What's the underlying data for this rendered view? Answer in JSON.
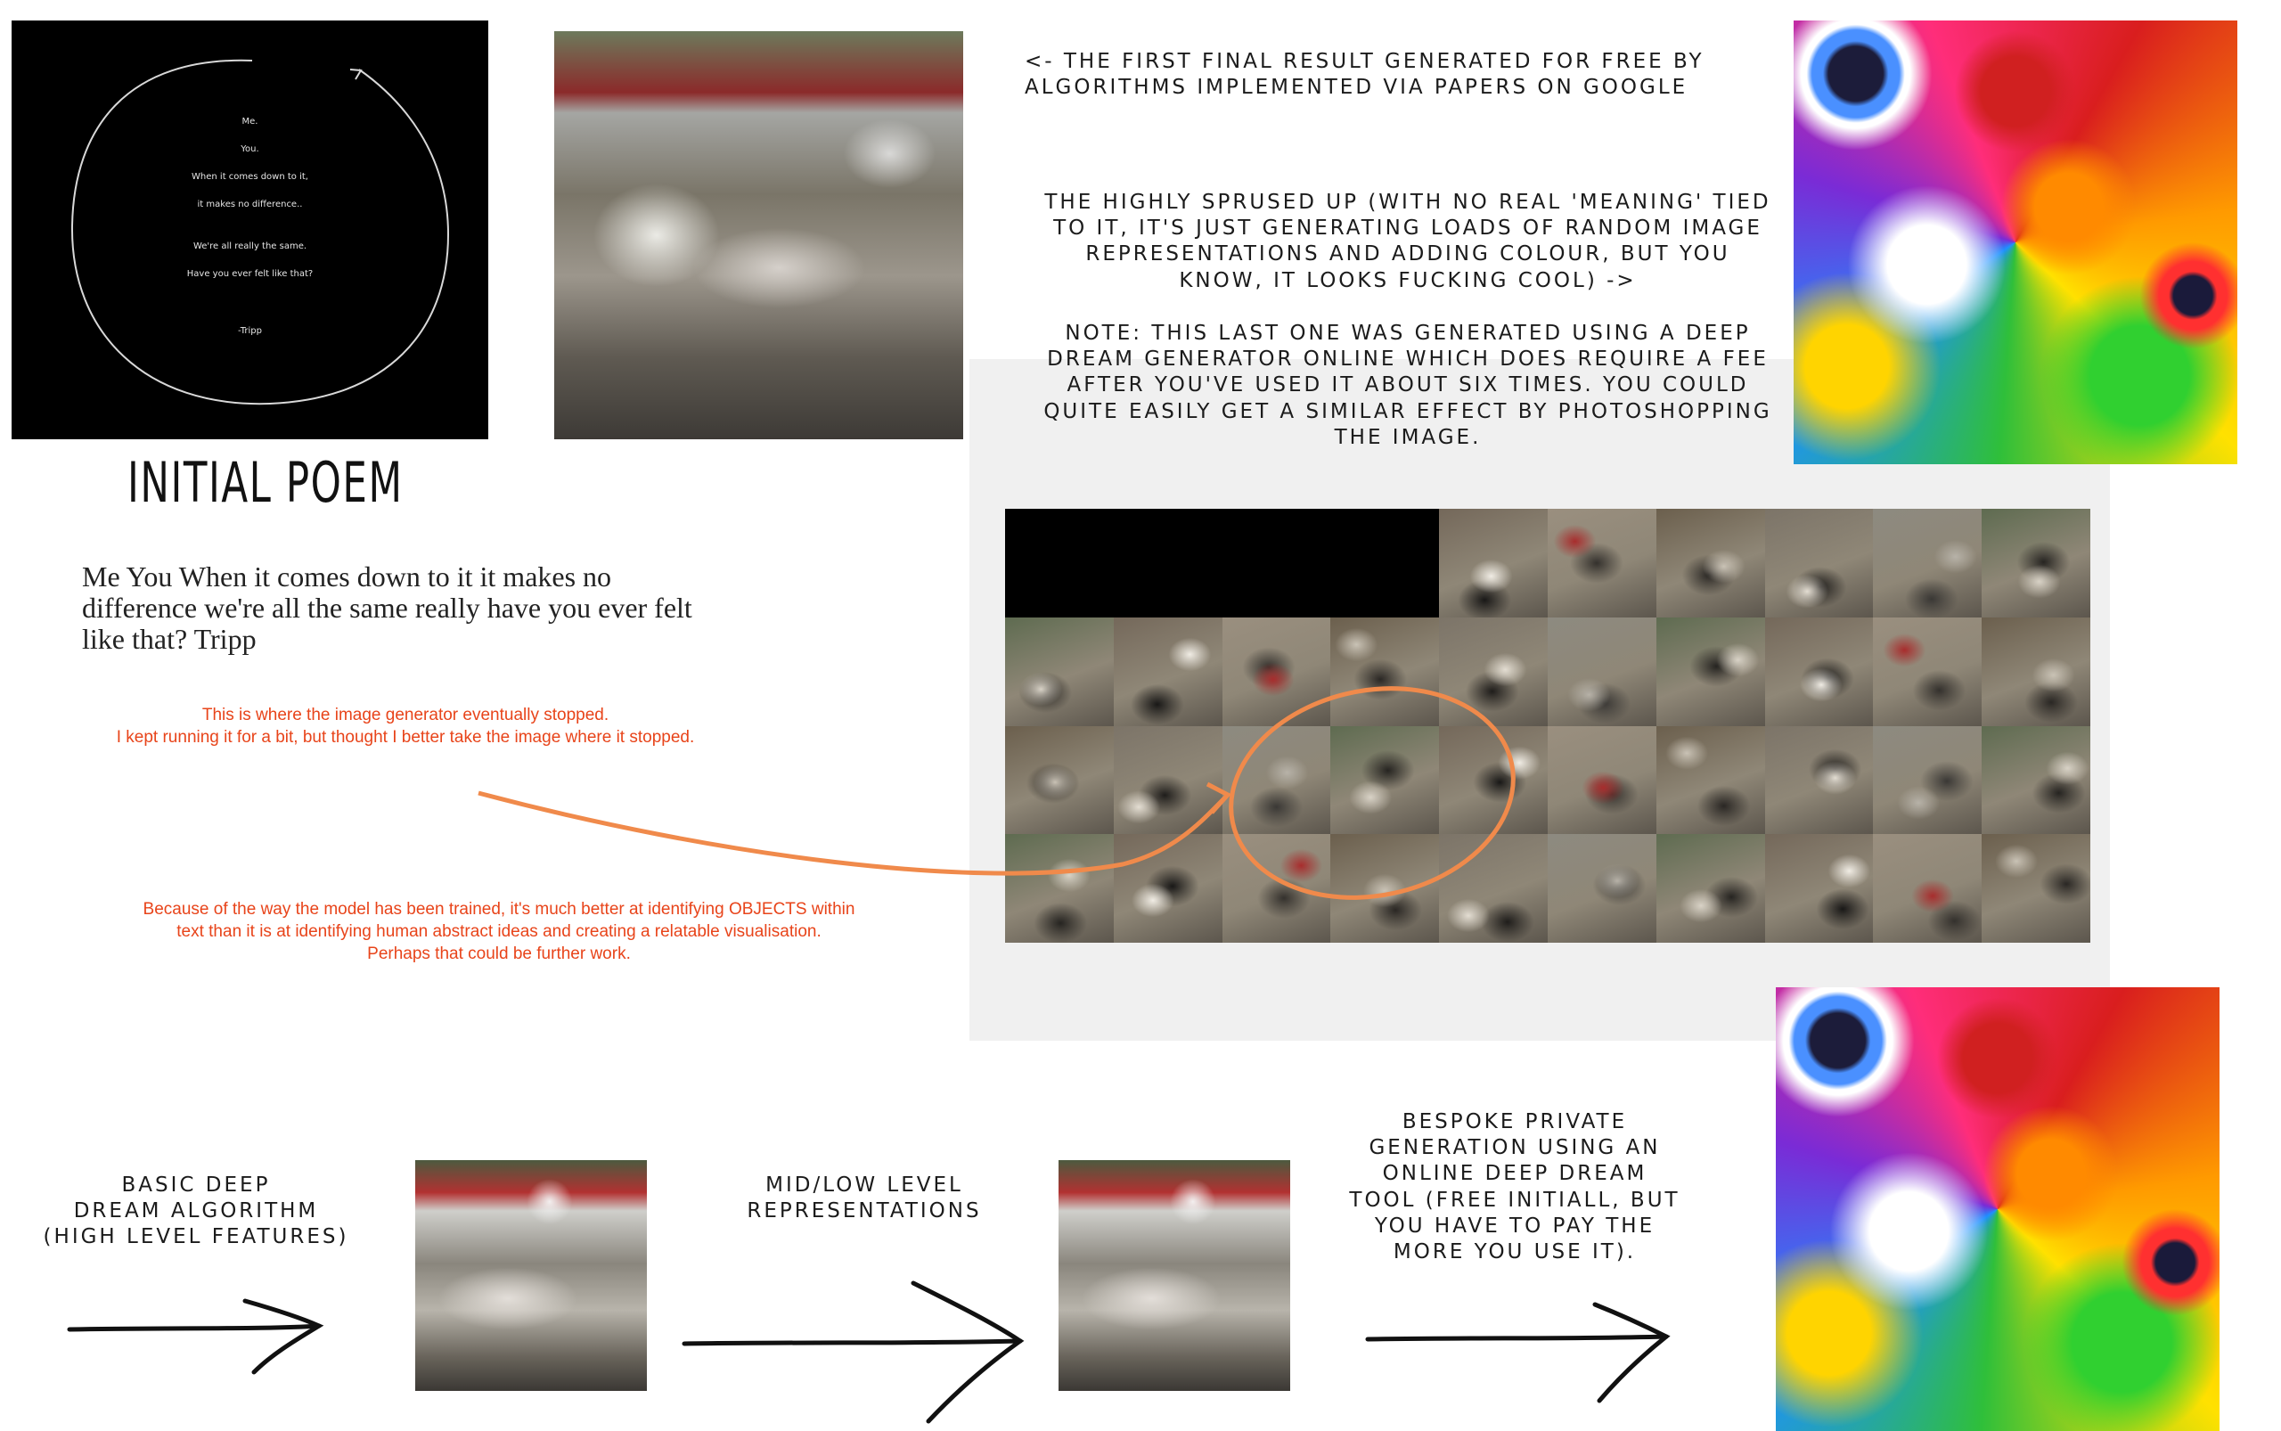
{
  "poem_image": {
    "lines": [
      "Me.",
      "You.",
      "When it comes down to it,",
      "it makes no difference..",
      "We're all really the same.",
      "Have you ever felt like that?",
      "-Tripp"
    ]
  },
  "initial_poem_title": "INITIAL POEM",
  "poem_text": "Me You When it comes down to it it makes no difference we're all the same really have you ever felt like that? Tripp",
  "note_stopped": [
    "This is where the image generator eventually stopped.",
    "I kept running it for a bit, but thought I better take the image where it stopped."
  ],
  "note_model": [
    "Because of the way the model has been trained, it's much better at identifying OBJECTS within",
    "text than it is at identifying human abstract ideas and creating a relatable visualisation.",
    "Perhaps that could be further work."
  ],
  "caption_first_result": [
    "<- THE FIRST FINAL RESULT GENERATED FOR FREE BY",
    "ALGORITHMS IMPLEMENTED VIA PAPERS ON GOOGLE"
  ],
  "caption_spruced": [
    "THE HIGHLY SPRUSED UP (WITH NO REAL 'MEANING' TIED",
    "TO IT, IT'S JUST GENERATING LOADS OF RANDOM IMAGE",
    "REPRESENTATIONS AND ADDING COLOUR, BUT YOU",
    "KNOW, IT LOOKS FUCKING COOL) ->"
  ],
  "caption_note": [
    "NOTE: THIS LAST ONE WAS GENERATED USING A DEEP",
    "DREAM GENERATOR ONLINE WHICH DOES REQUIRE A FEE",
    "AFTER YOU'VE USED IT ABOUT SIX TIMES. YOU COULD",
    "QUITE EASILY GET A SIMILAR EFFECT BY PHOTOSHOPPING",
    "THE IMAGE."
  ],
  "step_basic": [
    "BASIC DEEP",
    "DREAM ALGORITHM",
    "(HIGH LEVEL FEATURES)"
  ],
  "step_mid": [
    "MID/LOW LEVEL",
    "REPRESENTATIONS"
  ],
  "step_bespoke": [
    "BESPOKE PRIVATE",
    "GENERATION USING AN",
    "ONLINE DEEP DREAM",
    "TOOL (FREE INITIALL, BUT",
    "YOU HAVE TO PAY THE",
    "MORE YOU USE IT)."
  ],
  "colors": {
    "annotation_red": "#e8441a",
    "arrow_orange": "#f08a4b",
    "panel_grey": "#f0f0f0"
  }
}
